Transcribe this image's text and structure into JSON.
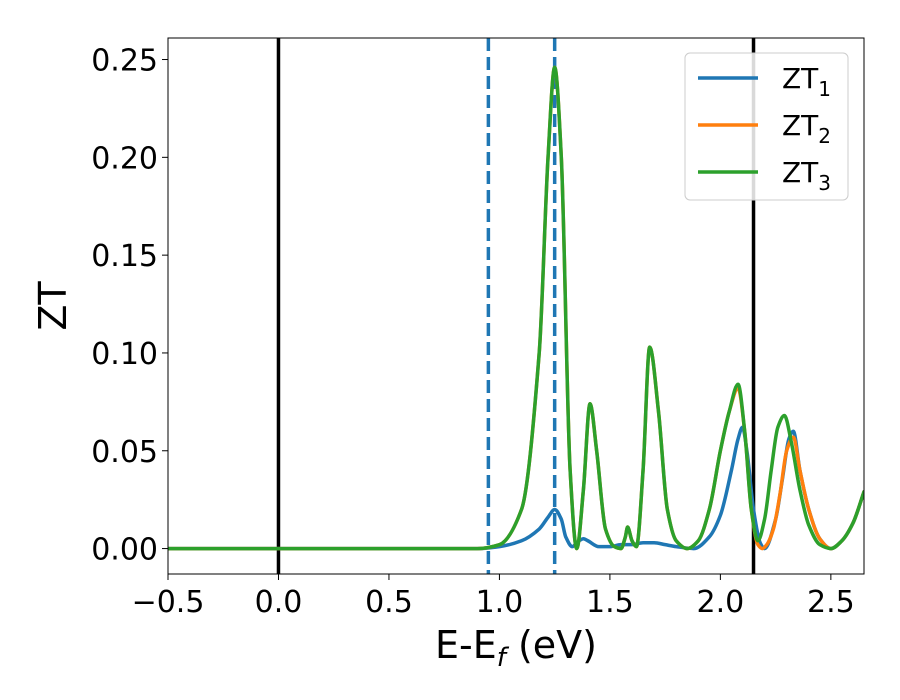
{
  "chart_data": {
    "type": "line",
    "title": "",
    "xlabel": "E-E",
    "xlabel_subscript": "f",
    "xlabel_unit": " (eV)",
    "ylabel": "ZT",
    "xlim": [
      -0.5,
      2.65
    ],
    "ylim": [
      -0.013,
      0.261
    ],
    "xticks": [
      -0.5,
      0.0,
      0.5,
      1.0,
      1.5,
      2.0,
      2.5
    ],
    "xtick_labels": [
      "−0.5",
      "0.0",
      "0.5",
      "1.0",
      "1.5",
      "2.0",
      "2.5"
    ],
    "yticks": [
      0.0,
      0.05,
      0.1,
      0.15,
      0.2,
      0.25
    ],
    "ytick_labels": [
      "0.00",
      "0.05",
      "0.10",
      "0.15",
      "0.20",
      "0.25"
    ],
    "grid": false,
    "legend_position": "top-right",
    "vertical_lines": [
      {
        "x": 0.0,
        "style": "solid",
        "color": "#000000"
      },
      {
        "x": 2.15,
        "style": "solid",
        "color": "#000000"
      },
      {
        "x": 0.95,
        "style": "dashed",
        "color": "#1f77b4"
      },
      {
        "x": 1.25,
        "style": "dashed",
        "color": "#1f77b4"
      }
    ],
    "series": [
      {
        "name": "ZT",
        "subscript": "1",
        "color": "#1f77b4",
        "x": [
          -0.5,
          0.9,
          1.0,
          1.1,
          1.18,
          1.22,
          1.25,
          1.28,
          1.3,
          1.33,
          1.35,
          1.38,
          1.4,
          1.45,
          1.5,
          1.55,
          1.6,
          1.65,
          1.7,
          1.75,
          1.8,
          1.88,
          1.95,
          2.0,
          2.05,
          2.08,
          2.1,
          2.12,
          2.15,
          2.18,
          2.2,
          2.25,
          2.28,
          2.31,
          2.33,
          2.36,
          2.4,
          2.45,
          2.5,
          2.55,
          2.6,
          2.65
        ],
        "y": [
          0.0,
          0.0,
          0.001,
          0.004,
          0.01,
          0.016,
          0.02,
          0.015,
          0.006,
          0.001,
          0.003,
          0.005,
          0.004,
          0.001,
          0.001,
          0.002,
          0.002,
          0.003,
          0.003,
          0.002,
          0.001,
          0.0,
          0.006,
          0.017,
          0.04,
          0.056,
          0.062,
          0.05,
          0.02,
          0.003,
          0.0,
          0.015,
          0.035,
          0.056,
          0.06,
          0.04,
          0.02,
          0.005,
          0.0,
          0.004,
          0.013,
          0.029
        ]
      },
      {
        "name": "ZT",
        "subscript": "2",
        "color": "#ff7f0e",
        "x": [
          -0.5,
          0.9,
          1.0,
          1.1,
          1.18,
          1.22,
          1.25,
          1.28,
          1.32,
          1.35,
          1.38,
          1.41,
          1.44,
          1.48,
          1.52,
          1.55,
          1.57,
          1.58,
          1.6,
          1.62,
          1.65,
          1.68,
          1.72,
          1.76,
          1.8,
          1.85,
          1.9,
          1.95,
          2.0,
          2.04,
          2.08,
          2.11,
          2.14,
          2.17,
          2.19,
          2.21,
          2.24,
          2.27,
          2.3,
          2.33,
          2.36,
          2.4,
          2.45,
          2.5,
          2.55,
          2.6,
          2.65
        ],
        "y": [
          0.0,
          0.0,
          0.002,
          0.02,
          0.1,
          0.2,
          0.246,
          0.2,
          0.04,
          0.0,
          0.03,
          0.074,
          0.05,
          0.01,
          0.001,
          0.0,
          0.006,
          0.011,
          0.004,
          0.001,
          0.04,
          0.103,
          0.07,
          0.02,
          0.004,
          0.0,
          0.004,
          0.02,
          0.05,
          0.07,
          0.082,
          0.06,
          0.02,
          0.002,
          0.0,
          0.002,
          0.01,
          0.028,
          0.05,
          0.057,
          0.04,
          0.02,
          0.005,
          0.0,
          0.004,
          0.013,
          0.029
        ]
      },
      {
        "name": "ZT",
        "subscript": "3",
        "color": "#2ca02c",
        "x": [
          -0.5,
          0.9,
          1.0,
          1.1,
          1.18,
          1.22,
          1.25,
          1.28,
          1.32,
          1.35,
          1.38,
          1.41,
          1.44,
          1.48,
          1.52,
          1.55,
          1.57,
          1.58,
          1.6,
          1.62,
          1.65,
          1.68,
          1.72,
          1.76,
          1.8,
          1.85,
          1.9,
          1.95,
          2.0,
          2.04,
          2.08,
          2.11,
          2.14,
          2.17,
          2.2,
          2.23,
          2.26,
          2.29,
          2.32,
          2.36,
          2.4,
          2.45,
          2.5,
          2.55,
          2.6,
          2.65
        ],
        "y": [
          0.0,
          0.0,
          0.002,
          0.02,
          0.1,
          0.2,
          0.246,
          0.2,
          0.04,
          0.0,
          0.03,
          0.074,
          0.05,
          0.01,
          0.001,
          0.0,
          0.006,
          0.011,
          0.004,
          0.001,
          0.04,
          0.103,
          0.07,
          0.02,
          0.004,
          0.0,
          0.004,
          0.02,
          0.05,
          0.07,
          0.084,
          0.06,
          0.02,
          0.004,
          0.015,
          0.04,
          0.062,
          0.068,
          0.055,
          0.03,
          0.012,
          0.002,
          0.0,
          0.004,
          0.013,
          0.029
        ]
      }
    ]
  }
}
